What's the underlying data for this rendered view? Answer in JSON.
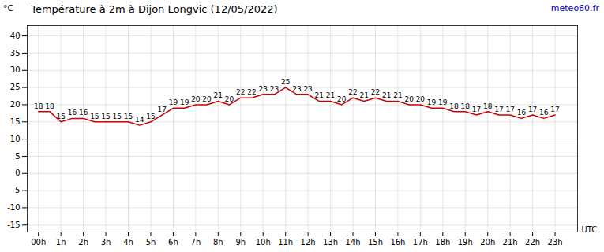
{
  "chart_data": {
    "type": "line",
    "title": "Température à 2m à Dijon Longvic (12/05/2022)",
    "xlabel": "UTC",
    "ylabel": "°C",
    "annotations": [
      "meteo60.fr"
    ],
    "x": [
      0,
      0.5,
      1,
      1.5,
      2,
      2.5,
      3,
      3.5,
      4,
      4.5,
      5,
      5.5,
      6,
      6.5,
      7,
      7.5,
      8,
      8.5,
      9,
      9.5,
      10,
      10.5,
      11,
      11.5,
      12,
      12.5,
      13,
      13.5,
      14,
      14.5,
      15,
      15.5,
      16,
      16.5,
      17,
      17.5,
      18,
      18.5,
      19,
      19.5,
      20,
      20.5,
      21,
      21.5,
      22,
      22.5,
      23
    ],
    "values": [
      18,
      18,
      15,
      16,
      16,
      15,
      15,
      15,
      15,
      14,
      15,
      17,
      19,
      19,
      20,
      20,
      21,
      20,
      22,
      22,
      23,
      23,
      25,
      23,
      23,
      21,
      21,
      20,
      22,
      21,
      22,
      21,
      21,
      20,
      20,
      19,
      19,
      18,
      18,
      17,
      18,
      17,
      17,
      16,
      17,
      16,
      17
    ],
    "color": "#cc0000",
    "xlim": [
      -0.5,
      24.0
    ],
    "ylim": [
      -17,
      43
    ],
    "xticks": [
      {
        "value": 0,
        "label": "00h"
      },
      {
        "value": 1,
        "label": "1h"
      },
      {
        "value": 2,
        "label": "2h"
      },
      {
        "value": 3,
        "label": "3h"
      },
      {
        "value": 4,
        "label": "4h"
      },
      {
        "value": 5,
        "label": "5h"
      },
      {
        "value": 6,
        "label": "6h"
      },
      {
        "value": 7,
        "label": "7h"
      },
      {
        "value": 8,
        "label": "8h"
      },
      {
        "value": 9,
        "label": "9h"
      },
      {
        "value": 10,
        "label": "10h"
      },
      {
        "value": 11,
        "label": "11h"
      },
      {
        "value": 12,
        "label": "12h"
      },
      {
        "value": 13,
        "label": "13h"
      },
      {
        "value": 14,
        "label": "14h"
      },
      {
        "value": 15,
        "label": "15h"
      },
      {
        "value": 16,
        "label": "16h"
      },
      {
        "value": 17,
        "label": "17h"
      },
      {
        "value": 18,
        "label": "18h"
      },
      {
        "value": 19,
        "label": "19h"
      },
      {
        "value": 20,
        "label": "20h"
      },
      {
        "value": 21,
        "label": "21h"
      },
      {
        "value": 22,
        "label": "22h"
      },
      {
        "value": 23,
        "label": "23h"
      }
    ],
    "yticks": [
      -15,
      -10,
      -5,
      0,
      5,
      10,
      15,
      20,
      25,
      30,
      35,
      40
    ],
    "grid": true,
    "data_labels": true
  }
}
